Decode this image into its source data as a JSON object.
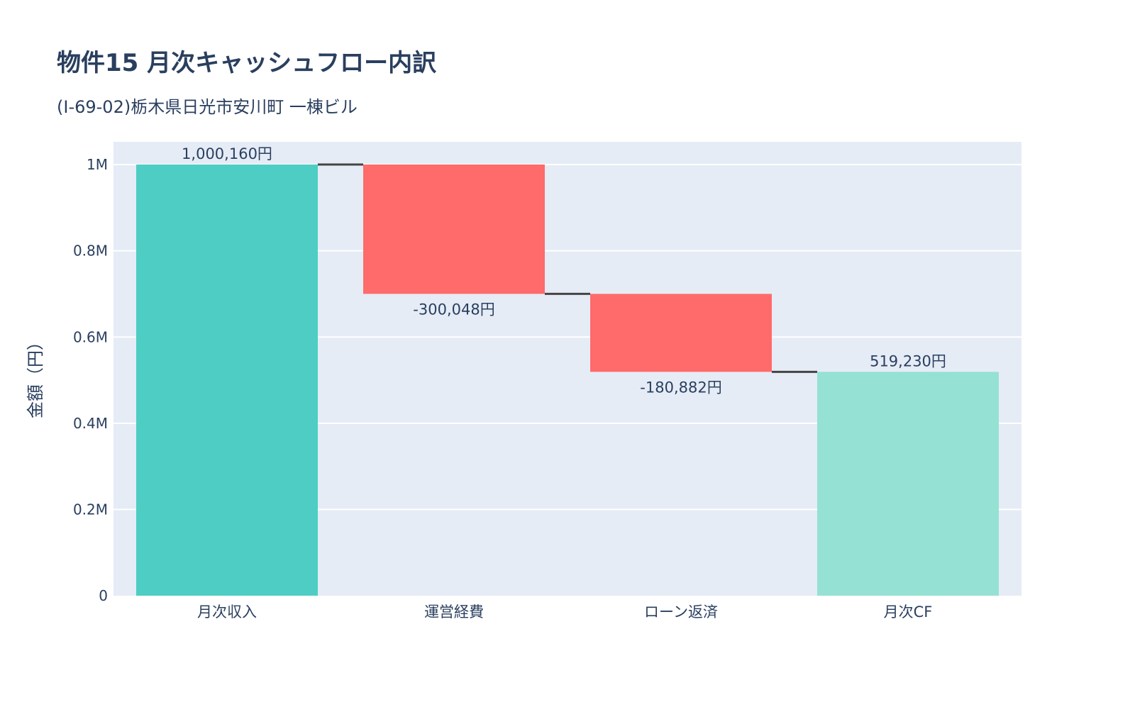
{
  "chart_data": {
    "type": "waterfall",
    "title": "物件15 月次キャッシュフロー内訳",
    "subtitle": "(I-69-02)栃木県日光市安川町 一棟ビル",
    "ylabel": "金額（円）",
    "xlabel": "",
    "categories": [
      "月次収入",
      "運営経費",
      "ローン返済",
      "月次CF"
    ],
    "measures": [
      "absolute",
      "relative",
      "relative",
      "total"
    ],
    "values": [
      1000160,
      -300048,
      -180882,
      519230
    ],
    "text_labels": [
      "1,000,160円",
      "-300,048円",
      "-180,882円",
      "519,230円"
    ],
    "ylim": [
      0,
      1052800
    ],
    "yticks": [
      0,
      200000,
      400000,
      600000,
      800000,
      1000000
    ],
    "ytick_labels": [
      "0",
      "0.2M",
      "0.4M",
      "0.6M",
      "0.8M",
      "1M"
    ],
    "grid": true,
    "legend": "none",
    "colors": {
      "absolute": "#4ecdc4",
      "decreasing": "#ff6b6b",
      "total": "#95e1d3",
      "connector": "#444444",
      "plot_bg": "#e5ecf6",
      "text": "#2a3f5f"
    }
  }
}
